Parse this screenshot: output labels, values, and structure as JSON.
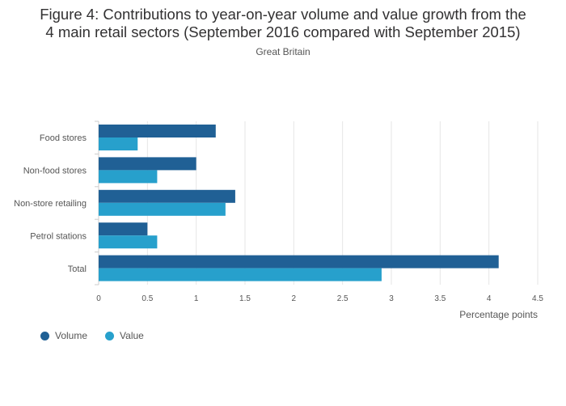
{
  "title_line1": "Figure 4: Contributions to year-on-year volume and value growth from the",
  "title_line2": "4 main retail sectors (September 2016 compared with September 2015)",
  "subtitle": "Great Britain",
  "colors": {
    "volume": "#206095",
    "value": "#27a0cc",
    "grid": "#e6e6e6",
    "axis_text": "#555555"
  },
  "chart_data": {
    "type": "bar",
    "orientation": "horizontal",
    "categories": [
      "Food stores",
      "Non-food stores",
      "Non-store retailing",
      "Petrol stations",
      "Total"
    ],
    "series": [
      {
        "name": "Volume",
        "values": [
          1.2,
          1.0,
          1.4,
          0.5,
          4.1
        ]
      },
      {
        "name": "Value",
        "values": [
          0.4,
          0.6,
          1.3,
          0.6,
          2.9
        ]
      }
    ],
    "xlabel": "Percentage points",
    "xlim": [
      0,
      4.5
    ],
    "xticks": [
      "0",
      "0.5",
      "1",
      "1.5",
      "2",
      "2.5",
      "3",
      "3.5",
      "4",
      "4.5"
    ],
    "grid": true,
    "legend_position": "bottom-left"
  }
}
